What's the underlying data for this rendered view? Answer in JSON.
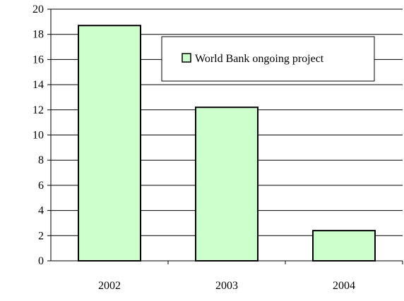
{
  "chart_data": {
    "type": "bar",
    "categories": [
      "2002",
      "2003",
      "2004"
    ],
    "series": [
      {
        "name": "World Bank ongoing project",
        "values": [
          18.7,
          12.2,
          2.4
        ]
      }
    ],
    "title": "",
    "xlabel": "",
    "ylabel": "",
    "ylim": [
      0,
      20
    ],
    "yticks": [
      "0",
      "2",
      "4",
      "6",
      "8",
      "10",
      "12",
      "14",
      "16",
      "18",
      "20"
    ],
    "grid": "horizontal",
    "legend_position": "top-right",
    "colors": {
      "bar_fill": "#ccffcc",
      "bar_stroke": "#000000",
      "grid": "#000000"
    }
  }
}
